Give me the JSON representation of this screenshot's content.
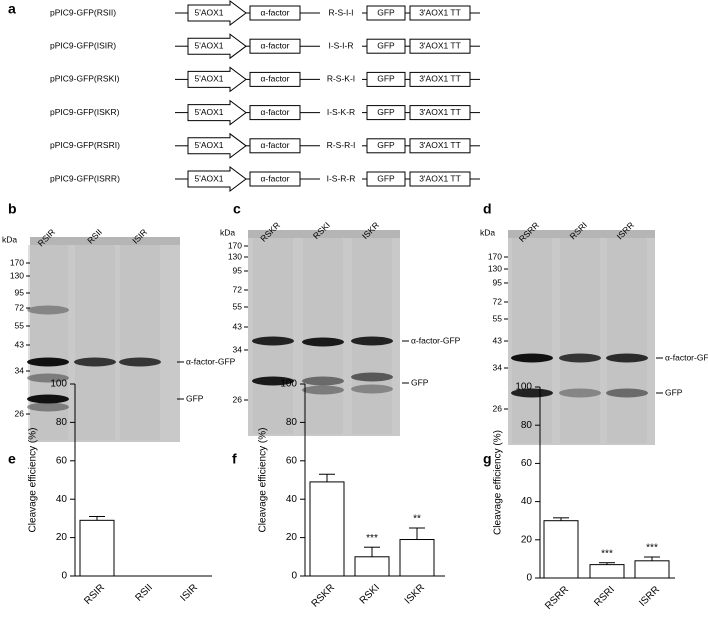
{
  "panel_a": {
    "label": "a",
    "constructs": [
      {
        "name": "pPIC9-GFP(RSII)",
        "promoter": "5'AOX1",
        "signal": "α-factor",
        "linker": "R-S-I-I",
        "gene": "GFP",
        "terminator": "3'AOX1  TT"
      },
      {
        "name": "pPIC9-GFP(ISIR)",
        "promoter": "5'AOX1",
        "signal": "α-factor",
        "linker": "I-S-I-R",
        "gene": "GFP",
        "terminator": "3'AOX1  TT"
      },
      {
        "name": "pPIC9-GFP(RSKI)",
        "promoter": "5'AOX1",
        "signal": "α-factor",
        "linker": "R-S-K-I",
        "gene": "GFP",
        "terminator": "3'AOX1  TT"
      },
      {
        "name": "pPIC9-GFP(ISKR)",
        "promoter": "5'AOX1",
        "signal": "α-factor",
        "linker": "I-S-K-R",
        "gene": "GFP",
        "terminator": "3'AOX1  TT"
      },
      {
        "name": "pPIC9-GFP(RSRI)",
        "promoter": "5'AOX1",
        "signal": "α-factor",
        "linker": "R-S-R-I",
        "gene": "GFP",
        "terminator": "3'AOX1  TT"
      },
      {
        "name": "pPIC9-GFP(ISRR)",
        "promoter": "5'AOX1",
        "signal": "α-factor",
        "linker": "I-S-R-R",
        "gene": "GFP",
        "terminator": "3'AOX1  TT"
      }
    ]
  },
  "blots": [
    {
      "label": "b",
      "lanes": [
        "RSIR",
        "RSII",
        "ISIR"
      ],
      "unit": "kDa",
      "markers": [
        170,
        130,
        95,
        72,
        55,
        43,
        34,
        26
      ],
      "bands": [
        "α-factor-GFP",
        "GFP"
      ]
    },
    {
      "label": "c",
      "lanes": [
        "RSKR",
        "RSKI",
        "ISKR"
      ],
      "unit": "kDa",
      "markers": [
        170,
        130,
        95,
        72,
        55,
        43,
        34,
        26
      ],
      "bands": [
        "α-factor-GFP",
        "GFP"
      ]
    },
    {
      "label": "d",
      "lanes": [
        "RSRR",
        "RSRI",
        "ISRR"
      ],
      "unit": "kDa",
      "markers": [
        170,
        130,
        95,
        72,
        55,
        43,
        34,
        26
      ],
      "bands": [
        "α-factor-GFP",
        "GFP"
      ]
    }
  ],
  "chart_data": [
    {
      "type": "bar",
      "panel_label": "e",
      "ylabel": "Cleavage efficiency (%)",
      "categories": [
        "RSIR",
        "RSII",
        "ISIR"
      ],
      "values": [
        29,
        0,
        0
      ],
      "errors": [
        2,
        0,
        0
      ],
      "annotations": [
        null,
        null,
        null
      ],
      "ylim": [
        0,
        100
      ],
      "yticks": [
        0,
        20,
        40,
        60,
        80,
        100
      ],
      "color": "#ffffff"
    },
    {
      "type": "bar",
      "panel_label": "f",
      "ylabel": "Cleavage efficiency (%)",
      "categories": [
        "RSKR",
        "RSKI",
        "ISKR"
      ],
      "values": [
        49,
        10,
        19
      ],
      "errors": [
        4,
        5,
        6
      ],
      "annotations": [
        null,
        "***",
        "**"
      ],
      "ylim": [
        0,
        100
      ],
      "yticks": [
        0,
        20,
        40,
        60,
        80,
        100
      ],
      "color": "#ffffff"
    },
    {
      "type": "bar",
      "panel_label": "g",
      "ylabel": "Cleavage efficiency (%)",
      "categories": [
        "RSRR",
        "RSRI",
        "ISRR"
      ],
      "values": [
        30,
        7,
        9
      ],
      "errors": [
        1.5,
        1,
        2
      ],
      "annotations": [
        null,
        "***",
        "***"
      ],
      "ylim": [
        0,
        100
      ],
      "yticks": [
        0,
        20,
        40,
        60,
        80,
        100
      ],
      "color": "#ffffff"
    }
  ]
}
